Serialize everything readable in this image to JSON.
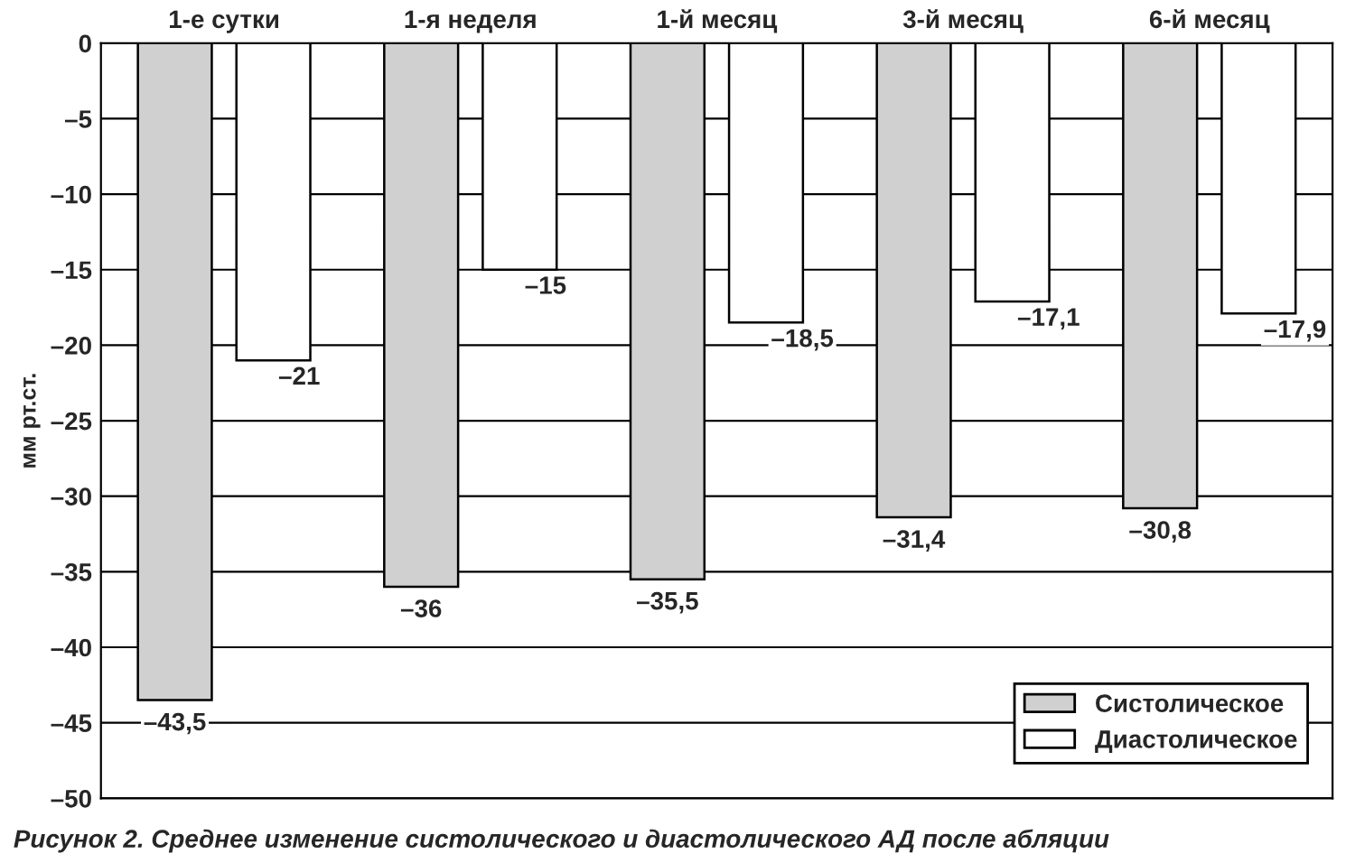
{
  "chart_data": {
    "type": "bar",
    "ylabel": "мм рт.ст.",
    "categories": [
      "1-е сутки",
      "1-я неделя",
      "1-й месяц",
      "3-й месяц",
      "6-й месяц"
    ],
    "series": [
      {
        "name": "Систолическое",
        "color": "#d0d0d0",
        "values": [
          -43.5,
          -36,
          -35.5,
          -31.4,
          -30.8
        ],
        "value_labels": [
          "–43,5",
          "–36",
          "–35,5",
          "–31,4",
          "–30,8"
        ]
      },
      {
        "name": "Диастолическое",
        "color": "#ffffff",
        "values": [
          -21,
          -15,
          -18.5,
          -17.1,
          -17.9
        ],
        "value_labels": [
          "–21",
          "–15",
          "–18,5",
          "–17,1",
          "–17,9"
        ]
      }
    ],
    "ylim": [
      -50,
      0
    ],
    "yticks": [
      {
        "value": -50,
        "label": "–50"
      },
      {
        "value": -45,
        "label": "–45"
      },
      {
        "value": -40,
        "label": "–40"
      },
      {
        "value": -35,
        "label": "–35"
      },
      {
        "value": -30,
        "label": "–30"
      },
      {
        "value": -25,
        "label": "–25"
      },
      {
        "value": -20,
        "label": "–20"
      },
      {
        "value": -15,
        "label": "–15"
      },
      {
        "value": -10,
        "label": "–10"
      },
      {
        "value": -5,
        "label": "–5"
      },
      0
    ],
    "grid": "y",
    "legend": "bottom right",
    "annotations": [
      "Рисунок 2. Среднее изменение систолического и диастолического АД после абляции"
    ]
  }
}
